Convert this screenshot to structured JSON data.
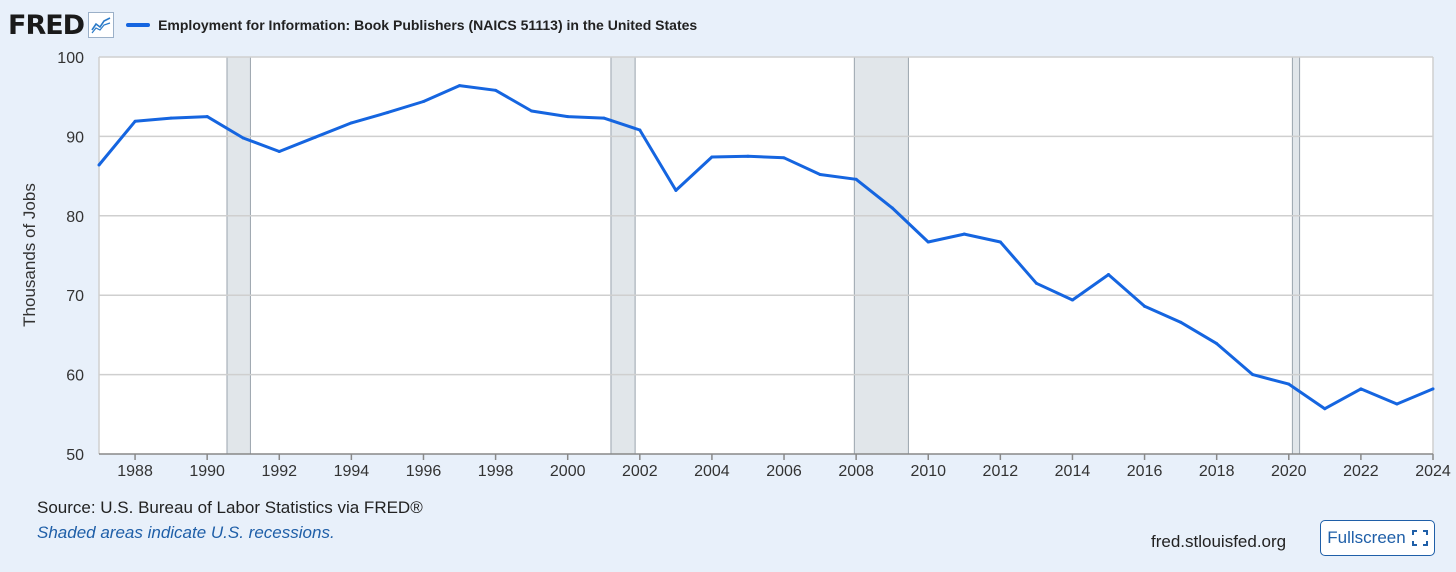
{
  "logo": {
    "text": "FRED",
    "icon": "fred-chart-icon"
  },
  "legend": {
    "label": "Employment for Information: Book Publishers (NAICS 51113) in the United States",
    "color": "#1565e0"
  },
  "footer": {
    "source": "Source: U.S. Bureau of Labor Statistics via FRED®",
    "recession_note": "Shaded areas indicate U.S. recessions.",
    "site": "fred.stlouisfed.org",
    "fullscreen_label": "Fullscreen"
  },
  "chart_data": {
    "type": "line",
    "title": "Employment for Information: Book Publishers (NAICS 51113) in the United States",
    "xlabel": "",
    "ylabel": "Thousands of Jobs",
    "xlim": [
      1987,
      2024
    ],
    "ylim": [
      50,
      100
    ],
    "x_ticks": [
      1988,
      1990,
      1992,
      1994,
      1996,
      1998,
      2000,
      2002,
      2004,
      2006,
      2008,
      2010,
      2012,
      2014,
      2016,
      2018,
      2020,
      2022,
      2024
    ],
    "y_ticks": [
      50,
      60,
      70,
      80,
      90,
      100
    ],
    "grid": true,
    "recessions": [
      [
        1990.55,
        1991.2
      ],
      [
        2001.2,
        2001.87
      ],
      [
        2007.95,
        2009.45
      ],
      [
        2020.1,
        2020.3
      ]
    ],
    "series": [
      {
        "name": "Employment for Information: Book Publishers (NAICS 51113) in the United States",
        "x": [
          1987,
          1988,
          1989,
          1990,
          1991,
          1992,
          1993,
          1994,
          1995,
          1996,
          1997,
          1998,
          1999,
          2000,
          2001,
          2002,
          2003,
          2004,
          2005,
          2006,
          2007,
          2008,
          2009,
          2010,
          2011,
          2012,
          2013,
          2014,
          2015,
          2016,
          2017,
          2018,
          2019,
          2020,
          2021,
          2022,
          2023,
          2024
        ],
        "values": [
          86.4,
          91.9,
          92.3,
          92.5,
          89.8,
          88.1,
          89.9,
          91.7,
          93.0,
          94.4,
          96.4,
          95.8,
          93.2,
          92.5,
          92.3,
          90.8,
          83.2,
          87.4,
          87.5,
          87.3,
          85.2,
          84.6,
          81.0,
          76.7,
          77.7,
          76.7,
          71.5,
          69.4,
          72.6,
          68.6,
          66.6,
          63.9,
          60.0,
          58.8,
          55.7,
          58.2,
          56.3,
          58.2
        ]
      }
    ]
  }
}
